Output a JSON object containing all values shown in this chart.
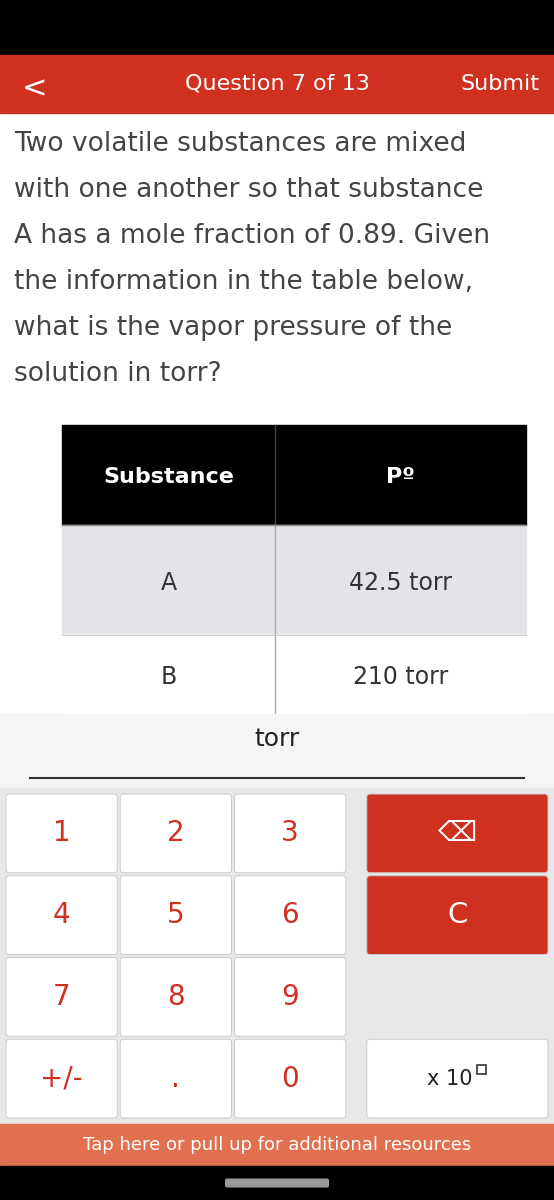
{
  "top_bar_color": "#000000",
  "nav_bar_color": "#d03020",
  "nav_back": "<",
  "nav_title": "Question 7 of 13",
  "nav_submit": "Submit",
  "question_text_lines": [
    "Two volatile substances are mixed",
    "with one another so that substance",
    "A has a mole fraction of 0.89. Given",
    "the information in the table below,",
    "what is the vapor pressure of the",
    "solution in torr?"
  ],
  "table_header_bg": "#000000",
  "table_header_col1": "Substance",
  "table_header_col2": "Pº",
  "table_row1_col1": "A",
  "table_row1_col2": "42.5 torr",
  "table_row1_bg": "#e2e4e8",
  "table_row2_col1": "B",
  "table_row2_col2": "210 torr",
  "table_row2_bg": "#ffffff",
  "answer_label": "torr",
  "keypad_bg": "#e8e8e8",
  "key_bg": "#ffffff",
  "key_color": "#d03020",
  "special_key_bg": "#d03020",
  "special_key_color": "#ffffff",
  "keys_row1": [
    "1",
    "2",
    "3"
  ],
  "keys_row2": [
    "4",
    "5",
    "6"
  ],
  "keys_row3": [
    "7",
    "8",
    "9"
  ],
  "keys_row4": [
    "+/-",
    ".",
    "0"
  ],
  "backspace_label": "⌫",
  "clear_label": "C",
  "x10_label": "x 10",
  "bottom_bar_color": "#e07050",
  "bottom_bar_text": "Tap here or pull up for additional resources",
  "very_bottom_bg": "#000000",
  "pill_color": "#999999"
}
